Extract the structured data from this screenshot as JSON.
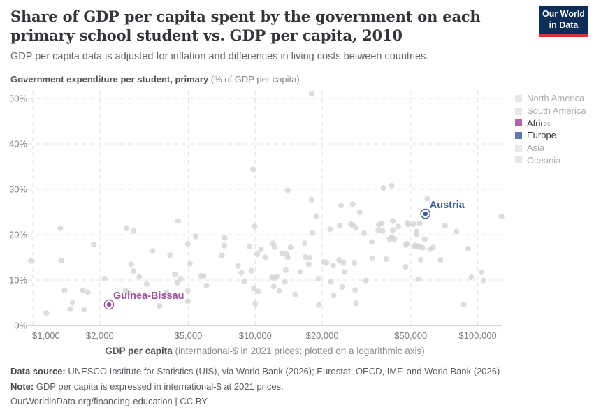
{
  "header": {
    "title": "Share of GDP per capita spent by the government on each primary school student vs. GDP per capita, 2010",
    "subtitle": "GDP per capita data is adjusted for inflation and differences in living costs between countries.",
    "logo": {
      "line1": "Our World",
      "line2": "in Data",
      "bg_color": "#0c2d55",
      "accent_color": "#d3392d"
    }
  },
  "axis": {
    "y_title_bold": "Government expenditure per student, primary",
    "y_title_rest": " (% of GDP per capita)",
    "x_title_bold": "GDP per capita",
    "x_title_rest": " (international-$ in 2021 prices; plotted on a logarithmic axis)"
  },
  "legend": {
    "position": "right",
    "items": [
      {
        "label": "North America",
        "color": "#e7e7e7",
        "muted": true
      },
      {
        "label": "South America",
        "color": "#e7e7e7",
        "muted": true
      },
      {
        "label": "Africa",
        "color": "#ad66a9",
        "muted": false
      },
      {
        "label": "Europe",
        "color": "#6377ae",
        "muted": false
      },
      {
        "label": "Asia",
        "color": "#e7e7e7",
        "muted": true
      },
      {
        "label": "Oceania",
        "color": "#e7e7e7",
        "muted": true
      }
    ]
  },
  "chart_data": {
    "type": "scatter",
    "title": "Share of GDP per capita spent by the government on each primary school student vs. GDP per capita, 2010",
    "xlabel": "GDP per capita (international-$ in 2021 prices; plotted on a logarithmic axis)",
    "ylabel": "Government expenditure per student, primary (% of GDP per capita)",
    "x_scale": "log",
    "grid": "dashed",
    "xlim": [
      900,
      135000
    ],
    "ylim": [
      0,
      52
    ],
    "x_ticks": [
      {
        "value": 1000,
        "label": "$1,000"
      },
      {
        "value": 2000,
        "label": "$2,000"
      },
      {
        "value": 5000,
        "label": "$5,000"
      },
      {
        "value": 10000,
        "label": "$10,000"
      },
      {
        "value": 20000,
        "label": "$20,000"
      },
      {
        "value": 50000,
        "label": "$50,000"
      },
      {
        "value": 100000,
        "label": "$100,000"
      }
    ],
    "y_ticks": [
      {
        "value": 0,
        "label": "0%"
      },
      {
        "value": 10,
        "label": "10%"
      },
      {
        "value": 20,
        "label": "20%"
      },
      {
        "value": 30,
        "label": "30%"
      },
      {
        "value": 40,
        "label": "40%"
      },
      {
        "value": 50,
        "label": "50%"
      }
    ],
    "point_color": "#d6d6d6",
    "points": [
      [
        980,
        14.2
      ],
      [
        1150,
        2.7
      ],
      [
        1330,
        21.4
      ],
      [
        1340,
        14.3
      ],
      [
        1390,
        7.7
      ],
      [
        1470,
        3.6
      ],
      [
        1510,
        5.0
      ],
      [
        1680,
        7.7
      ],
      [
        1700,
        3.5
      ],
      [
        1770,
        7.3
      ],
      [
        1880,
        17.8
      ],
      [
        2100,
        10.3
      ],
      [
        2610,
        7.7
      ],
      [
        2640,
        21.4
      ],
      [
        2700,
        7.2
      ],
      [
        2770,
        13.5
      ],
      [
        2840,
        20.8
      ],
      [
        2840,
        12.0
      ],
      [
        3010,
        10.7
      ],
      [
        3250,
        9.1
      ],
      [
        3450,
        16.4
      ],
      [
        3710,
        4.3
      ],
      [
        3990,
        7.3
      ],
      [
        4140,
        15.5
      ],
      [
        4350,
        11.3
      ],
      [
        4460,
        9.4
      ],
      [
        4500,
        23.0
      ],
      [
        4620,
        10.3
      ],
      [
        4970,
        18.0
      ],
      [
        4970,
        7.6
      ],
      [
        4970,
        5.3
      ],
      [
        5400,
        19.6
      ],
      [
        17900,
        51.1
      ],
      [
        9750,
        34.4
      ],
      [
        14000,
        29.8
      ],
      [
        17900,
        27.7
      ],
      [
        24300,
        26.4
      ],
      [
        27400,
        26.7
      ],
      [
        5090,
        13.6
      ],
      [
        5700,
        10.9
      ],
      [
        5870,
        10.9
      ],
      [
        6040,
        8.8
      ],
      [
        7290,
        19.3
      ],
      [
        7260,
        17.6
      ],
      [
        7070,
        15.4
      ],
      [
        8370,
        13.1
      ],
      [
        8660,
        11.6
      ],
      [
        9420,
        17.4
      ],
      [
        9610,
        12.0
      ],
      [
        8900,
        9.7
      ],
      [
        9940,
        21.8
      ],
      [
        10200,
        15.7
      ],
      [
        10600,
        16.7
      ],
      [
        11100,
        15.0
      ],
      [
        9840,
        8.2
      ],
      [
        10300,
        7.5
      ],
      [
        10000,
        4.8
      ],
      [
        12000,
        18.1
      ],
      [
        12200,
        17.3
      ],
      [
        11900,
        10.6
      ],
      [
        12100,
        10.4
      ],
      [
        12500,
        10.8
      ],
      [
        12100,
        8.6
      ],
      [
        12800,
        7.6
      ],
      [
        13200,
        15.9
      ],
      [
        13800,
        15.7
      ],
      [
        14000,
        15.0
      ],
      [
        13700,
        12.2
      ],
      [
        13600,
        9.6
      ],
      [
        14400,
        17.2
      ],
      [
        15100,
        6.8
      ],
      [
        15900,
        11.8
      ],
      [
        16700,
        18.1
      ],
      [
        16800,
        15.1
      ],
      [
        17600,
        14.9
      ],
      [
        17400,
        13.5
      ],
      [
        18100,
        20.4
      ],
      [
        18800,
        24.1
      ],
      [
        19200,
        10.3
      ],
      [
        19300,
        4.5
      ],
      [
        20300,
        14.0
      ],
      [
        20900,
        13.8
      ],
      [
        21700,
        21.2
      ],
      [
        21900,
        9.6
      ],
      [
        22400,
        13.2
      ],
      [
        22500,
        6.6
      ],
      [
        24000,
        22.0
      ],
      [
        23800,
        14.4
      ],
      [
        24600,
        8.5
      ],
      [
        24900,
        13.8
      ],
      [
        25200,
        11.8
      ],
      [
        26900,
        22.3
      ],
      [
        27500,
        22.0
      ],
      [
        27900,
        13.7
      ],
      [
        37700,
        30.3
      ],
      [
        41000,
        30.8
      ],
      [
        59300,
        27.9
      ],
      [
        29500,
        24.9
      ],
      [
        28400,
        21.5
      ],
      [
        30800,
        20.3
      ],
      [
        33400,
        18.4
      ],
      [
        35900,
        22.2
      ],
      [
        37100,
        22.5
      ],
      [
        35700,
        21.0
      ],
      [
        37300,
        20.8
      ],
      [
        41500,
        23.0
      ],
      [
        43900,
        21.8
      ],
      [
        41500,
        21.0
      ],
      [
        48200,
        22.6
      ],
      [
        48800,
        22.3
      ],
      [
        51600,
        22.3
      ],
      [
        54800,
        22.5
      ],
      [
        53100,
        20.7
      ],
      [
        41000,
        19.4
      ],
      [
        41300,
        19.2
      ],
      [
        71300,
        22.0
      ],
      [
        80200,
        20.7
      ],
      [
        128000,
        24.0
      ],
      [
        48100,
        18.0
      ],
      [
        52600,
        17.6
      ],
      [
        53200,
        20.0
      ],
      [
        40200,
        19.0
      ],
      [
        42200,
        19.0
      ],
      [
        47400,
        17.7
      ],
      [
        51900,
        17.5
      ],
      [
        53500,
        17.4
      ],
      [
        54800,
        17.3
      ],
      [
        56500,
        17.1
      ],
      [
        57800,
        19.0
      ],
      [
        63000,
        17.2
      ],
      [
        61000,
        16.8
      ],
      [
        68000,
        14.4
      ],
      [
        55400,
        14.5
      ],
      [
        33600,
        14.8
      ],
      [
        38800,
        14.6
      ],
      [
        47400,
        12.9
      ],
      [
        31400,
        9.9
      ],
      [
        28100,
        7.8
      ],
      [
        28400,
        4.9
      ],
      [
        54100,
        10.2
      ],
      [
        90500,
        16.9
      ],
      [
        93600,
        10.6
      ],
      [
        104000,
        11.7
      ],
      [
        106000,
        9.9
      ],
      [
        86400,
        4.6
      ]
    ],
    "highlighted": [
      {
        "name": "Guinea-Bissau",
        "x": 2200,
        "y": 4.6,
        "color": "#9c519b",
        "continent": "Africa"
      },
      {
        "name": "Austria",
        "x": 58200,
        "y": 24.6,
        "color": "#40609c",
        "continent": "Europe"
      }
    ]
  },
  "footer": {
    "source_label": "Data source:",
    "source_text": " UNESCO Institute for Statistics (UIS), via World Bank (2026); Eurostat, OECD, IMF, and World Bank (2026)",
    "note_label": "Note:",
    "note_text": " GDP per capita is expressed in international-$ at 2021 prices.",
    "license_text": "OurWorldinData.org/financing-education | CC BY"
  }
}
